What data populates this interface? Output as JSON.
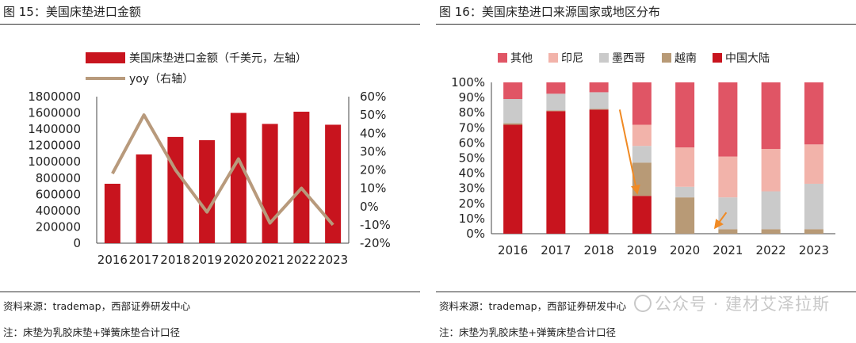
{
  "left": {
    "title": "图 15：美国床垫进口金额",
    "source": "资料来源：trademap，西部证券研发中心",
    "note": "注：床垫为乳胶床垫+弹簧床垫合计口径"
  },
  "right": {
    "title": "图 16：美国床垫进口来源国家或地区分布",
    "source": "资料来源：trademap，西部证券研发中心",
    "note": "注：床垫为乳胶床垫+弹簧床垫合计口径"
  },
  "watermark": "公众号 · 建材艾泽拉斯",
  "colors": {
    "bar": "#c8141e",
    "line": "#b89a7c",
    "other": "#e05565",
    "indonesia": "#f2b3aa",
    "mexico": "#cacaca",
    "vietnam": "#b89a76",
    "china": "#c8141e",
    "arrow": "#f08a24"
  },
  "chart_data": [
    {
      "type": "bar",
      "categories": [
        "2016",
        "2017",
        "2018",
        "2019",
        "2020",
        "2021",
        "2022",
        "2023"
      ],
      "series": [
        {
          "name": "美国床垫进口金额（千美元，左轴）",
          "axis": "left",
          "values": [
            730000,
            1090000,
            1305000,
            1265000,
            1600000,
            1465000,
            1615000,
            1455000
          ]
        },
        {
          "name": "yoy（右轴）",
          "axis": "right",
          "type": "line",
          "values": [
            0.18,
            0.5,
            0.2,
            -0.03,
            0.26,
            -0.09,
            0.1,
            -0.1
          ]
        }
      ],
      "y_left_ticks": [
        "0",
        "200000",
        "400000",
        "600000",
        "800000",
        "1000000",
        "1200000",
        "1400000",
        "1600000",
        "1800000"
      ],
      "y_right_ticks": [
        "-20%",
        "-10%",
        "0%",
        "10%",
        "20%",
        "30%",
        "40%",
        "50%",
        "60%"
      ],
      "ylim_left": [
        0,
        1800000
      ],
      "ylim_right": [
        -0.2,
        0.6
      ],
      "legend_position": "top"
    },
    {
      "type": "bar",
      "stacked": true,
      "categories": [
        "2016",
        "2017",
        "2018",
        "2019",
        "2020",
        "2021",
        "2022",
        "2023"
      ],
      "series": [
        {
          "name": "中国大陆",
          "key": "china",
          "values": [
            72,
            81,
            82,
            25,
            0,
            0,
            0,
            0
          ]
        },
        {
          "name": "越南",
          "key": "vietnam",
          "values": [
            1,
            0.5,
            0.5,
            22,
            24,
            3,
            3,
            3
          ]
        },
        {
          "name": "墨西哥",
          "key": "mexico",
          "values": [
            16,
            11,
            11,
            11,
            7,
            21,
            25,
            30
          ]
        },
        {
          "name": "印尼",
          "key": "indonesia",
          "values": [
            0,
            0,
            0,
            14,
            26,
            27,
            28,
            26
          ]
        },
        {
          "name": "其他",
          "key": "other",
          "values": [
            11,
            7.5,
            6.5,
            28,
            43,
            49,
            44,
            41
          ]
        }
      ],
      "legend_order": [
        "其他",
        "印尼",
        "墨西哥",
        "越南",
        "中国大陆"
      ],
      "y_ticks": [
        "0%",
        "10%",
        "20%",
        "30%",
        "40%",
        "50%",
        "60%",
        "70%",
        "80%",
        "90%",
        "100%"
      ],
      "ylim": [
        0,
        100
      ],
      "annotations": [
        {
          "type": "arrow",
          "from_category": "2019",
          "note": "China share drop"
        },
        {
          "type": "arrow",
          "from_category": "2021",
          "note": "Vietnam share drop"
        }
      ],
      "legend_position": "top"
    }
  ]
}
